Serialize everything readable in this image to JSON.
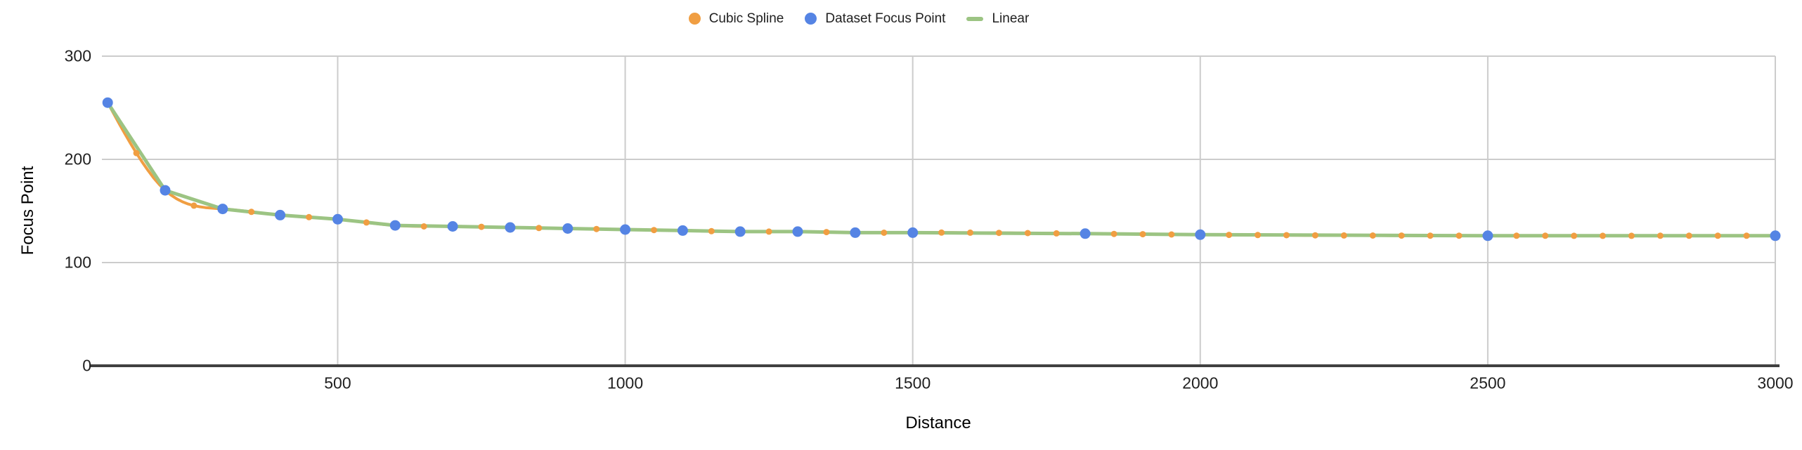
{
  "legend": {
    "position": "top",
    "items": [
      {
        "label": "Cubic Spline",
        "marker": "circle",
        "color": "#F09E42"
      },
      {
        "label": "Dataset Focus Point",
        "marker": "circle",
        "color": "#5584E4"
      },
      {
        "label": "Linear",
        "marker": "line",
        "color": "#9CC483"
      }
    ]
  },
  "chart_data": {
    "type": "line",
    "title": "",
    "xlabel": "Distance",
    "ylabel": "Focus Point",
    "xlim": [
      90,
      3000
    ],
    "ylim": [
      0,
      300
    ],
    "x_ticks": [
      500,
      1000,
      1500,
      2000,
      2500,
      3000
    ],
    "y_ticks": [
      0,
      100,
      200,
      300
    ],
    "grid": true,
    "legend_position": "top",
    "dataset_points": [
      [
        100,
        255
      ],
      [
        200,
        170
      ],
      [
        300,
        152
      ],
      [
        400,
        146
      ],
      [
        500,
        142
      ],
      [
        600,
        136
      ],
      [
        700,
        135
      ],
      [
        800,
        134
      ],
      [
        900,
        133
      ],
      [
        1000,
        132
      ],
      [
        1100,
        131
      ],
      [
        1200,
        130
      ],
      [
        1300,
        130
      ],
      [
        1400,
        129
      ],
      [
        1500,
        129
      ],
      [
        1800,
        128
      ],
      [
        2000,
        127
      ],
      [
        2500,
        126
      ],
      [
        3000,
        126
      ]
    ],
    "series": [
      {
        "name": "Cubic Spline",
        "render": "spline",
        "color": "#F09E42",
        "line_width": 4,
        "marker_radius": 4.5,
        "sample_range": [
          100,
          3000
        ],
        "sample_step": 50,
        "note": "natural cubic spline through dataset_points, sampled every 50 distance units"
      },
      {
        "name": "Dataset Focus Point",
        "render": "points",
        "color": "#5584E4",
        "marker_radius": 7.5
      },
      {
        "name": "Linear",
        "render": "linear",
        "color": "#9CC483",
        "line_width": 5
      }
    ],
    "colors": {
      "gridline": "#CCCCCC",
      "axis_line": "#404040",
      "tick_text": "#212121",
      "axis_title_text": "#000000",
      "background": "#FFFFFF"
    }
  }
}
